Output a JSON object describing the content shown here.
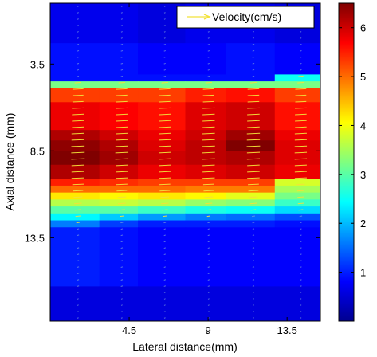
{
  "chart_data": {
    "type": "heatmap",
    "xlabel": "Lateral distance(mm)",
    "ylabel": "Axial distance (mm)",
    "x_ticks": [
      4.5,
      9,
      13.5
    ],
    "y_ticks": [
      3.5,
      8.5,
      13.5
    ],
    "xlim": [
      0,
      15.4
    ],
    "ylim": [
      0,
      18.3
    ],
    "legend": {
      "label": "Velocity(cm/s)",
      "placement": "top-right",
      "arrow_color": "#f2e23a"
    },
    "colorbar": {
      "range": [
        0,
        6.5
      ],
      "ticks": [
        1,
        2,
        3,
        4,
        5,
        6
      ]
    },
    "columns": [
      {
        "x_start": 0.0,
        "x_end": 2.8
      },
      {
        "x_start": 2.8,
        "x_end": 5.0
      },
      {
        "x_start": 5.0,
        "x_end": 7.7
      },
      {
        "x_start": 7.7,
        "x_end": 10.0
      },
      {
        "x_start": 10.0,
        "x_end": 12.8
      },
      {
        "x_start": 12.8,
        "x_end": 15.4
      }
    ],
    "profiles": [
      {
        "y_start": 0.0,
        "values": [
          0.7,
          0.7,
          0.6,
          0.7,
          0.7,
          0.6
        ]
      },
      {
        "y_start": 2.3,
        "values": [
          0.9,
          0.9,
          0.8,
          0.8,
          0.9,
          0.8
        ]
      },
      {
        "y_start": 4.1,
        "values": [
          0.9,
          0.9,
          0.9,
          0.9,
          0.9,
          2.5
        ]
      },
      {
        "y_start": 4.5,
        "values": [
          3.2,
          3.2,
          3.2,
          3.2,
          3.2,
          3.2
        ]
      },
      {
        "y_start": 4.9,
        "values": [
          5.3,
          5.3,
          5.3,
          5.5,
          5.6,
          5.3
        ]
      },
      {
        "y_start": 5.7,
        "values": [
          5.8,
          5.7,
          5.6,
          5.9,
          6.0,
          5.6
        ]
      },
      {
        "y_start": 7.3,
        "values": [
          6.2,
          6.0,
          5.8,
          6.0,
          6.3,
          5.8
        ]
      },
      {
        "y_start": 7.9,
        "values": [
          6.4,
          6.2,
          5.9,
          6.1,
          6.5,
          5.9
        ]
      },
      {
        "y_start": 8.5,
        "values": [
          6.5,
          6.3,
          6.0,
          6.1,
          6.2,
          5.9
        ]
      },
      {
        "y_start": 9.3,
        "values": [
          6.2,
          6.0,
          5.8,
          5.9,
          6.0,
          5.8
        ]
      },
      {
        "y_start": 10.1,
        "values": [
          5.5,
          5.4,
          5.3,
          5.3,
          5.3,
          3.8
        ]
      },
      {
        "y_start": 10.5,
        "values": [
          5.0,
          5.0,
          5.0,
          4.9,
          4.9,
          3.5
        ]
      },
      {
        "y_start": 10.9,
        "values": [
          4.2,
          4.1,
          4.2,
          4.1,
          3.9,
          3.2
        ]
      },
      {
        "y_start": 11.3,
        "values": [
          3.6,
          3.7,
          3.6,
          3.4,
          3.3,
          2.8
        ]
      },
      {
        "y_start": 11.7,
        "values": [
          3.0,
          3.0,
          2.8,
          2.6,
          2.5,
          2.2
        ]
      },
      {
        "y_start": 12.1,
        "values": [
          2.4,
          2.1,
          1.8,
          1.6,
          1.5,
          1.3
        ]
      },
      {
        "y_start": 12.5,
        "values": [
          1.6,
          1.2,
          1.0,
          1.0,
          1.0,
          0.9
        ]
      },
      {
        "y_start": 12.9,
        "values": [
          1.0,
          0.9,
          0.8,
          0.8,
          0.8,
          0.8
        ]
      },
      {
        "y_start": 16.3,
        "values": [
          0.6,
          0.6,
          0.6,
          0.6,
          0.6,
          0.6
        ]
      }
    ],
    "grid": false
  }
}
